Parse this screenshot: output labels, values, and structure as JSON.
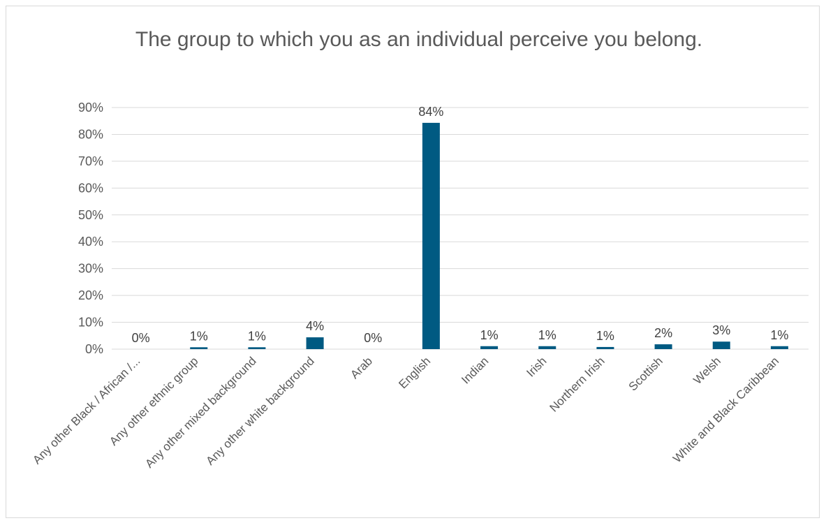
{
  "chart_data": {
    "type": "bar",
    "title": "The group to which you as an individual perceive you belong.",
    "xlabel": "",
    "ylabel": "",
    "categories": [
      "Any other Black / African /...",
      "Any other ethnic group",
      "Any other mixed background",
      "Any other white background",
      "Arab",
      "English",
      "Indian",
      "Irish",
      "Northern Irish",
      "Scottish",
      "Welsh",
      "White and Black Caribbean"
    ],
    "values": [
      0.0,
      0.7,
      0.7,
      4.4,
      0.0,
      84.3,
      1.1,
      1.1,
      0.8,
      1.8,
      2.8,
      1.1
    ],
    "data_labels": [
      "0%",
      "1%",
      "1%",
      "4%",
      "0%",
      "84%",
      "1%",
      "1%",
      "1%",
      "2%",
      "3%",
      "1%"
    ],
    "ylim": [
      0,
      90
    ],
    "yticks": [
      0,
      10,
      20,
      30,
      40,
      50,
      60,
      70,
      80,
      90
    ],
    "ytick_labels": [
      "0%",
      "10%",
      "20%",
      "30%",
      "40%",
      "50%",
      "60%",
      "70%",
      "80%",
      "90%"
    ],
    "grid": true,
    "legend": "none",
    "bar_color": "#005a82",
    "grid_color": "#d9d9d9"
  }
}
